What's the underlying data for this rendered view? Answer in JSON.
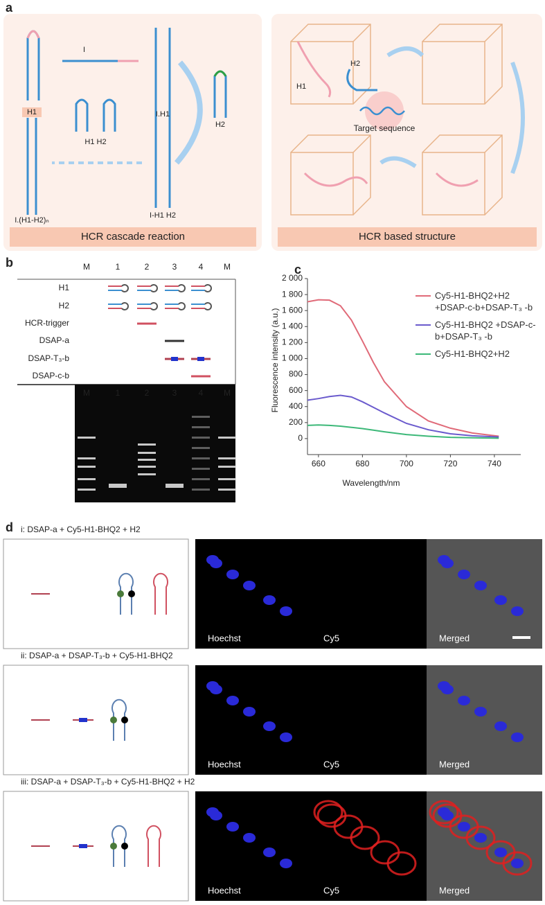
{
  "panel_a": {
    "label": "a",
    "left": {
      "labels": [
        "I",
        "H1",
        "I.H1",
        "H2",
        "H1 H2",
        "I-H1  H2",
        "I.(H1-H2)ₙ"
      ],
      "caption": "HCR cascade reaction"
    },
    "right": {
      "labels": [
        "H1",
        "H2",
        "Target sequence"
      ],
      "caption": "HCR based structure"
    }
  },
  "panel_b": {
    "label": "b",
    "lanes": [
      "M",
      "1",
      "2",
      "3",
      "4",
      "M"
    ],
    "rows": [
      "H1",
      "H2",
      "HCR-trigger",
      "DSAP-a",
      "DSAP-T₃-b",
      "DSAP-c-b"
    ],
    "gel_lanes": [
      "M",
      "1",
      "2",
      "3",
      "4",
      "M"
    ]
  },
  "chart_data": {
    "type": "line",
    "panel_label": "c",
    "x_label": "Wavelength/nm",
    "y_label": "Fluorescence intensity (a.u.)",
    "x": [
      655,
      660,
      665,
      670,
      675,
      680,
      685,
      690,
      700,
      710,
      720,
      730,
      742
    ],
    "series": [
      {
        "name": "Cy5-H1-BHQ2+H2 +DSAP-c-b+DSAP-T₃ -b",
        "color": "#e06a78",
        "values": [
          1710,
          1735,
          1730,
          1660,
          1480,
          1220,
          950,
          710,
          400,
          220,
          130,
          70,
          30
        ]
      },
      {
        "name": "Cy5-H1-BHQ2 +DSAP-c-b+DSAP-T₃ -b",
        "color": "#6a5acd",
        "values": [
          480,
          500,
          525,
          540,
          520,
          460,
          390,
          320,
          190,
          110,
          60,
          35,
          20
        ]
      },
      {
        "name": "Cy5-H1-BHQ2+H2",
        "color": "#3cb878",
        "values": [
          165,
          170,
          165,
          155,
          140,
          125,
          105,
          85,
          50,
          30,
          15,
          10,
          5
        ]
      }
    ],
    "xlim": [
      655,
      752
    ],
    "xticks": [
      660,
      680,
      700,
      720,
      740
    ],
    "ylim": [
      -200,
      2000
    ],
    "yticks": [
      {
        "value": 2000,
        "label": "2 000"
      },
      {
        "value": 1800,
        "label": "1 800"
      },
      {
        "value": 1600,
        "label": "1 600"
      },
      {
        "value": 1400,
        "label": "1 400"
      },
      {
        "value": 1200,
        "label": "1 200"
      },
      {
        "value": 1000,
        "label": "1 000"
      },
      800,
      600,
      400,
      200,
      0
    ],
    "grid": false
  },
  "panel_d": {
    "label": "d",
    "rows": [
      {
        "title": "i: DSAP-a + Cy5-H1-BHQ2 + H2",
        "channels": [
          "Hoechst",
          "Cy5",
          "Merged"
        ]
      },
      {
        "title": "ii: DSAP-a + DSAP-T₃-b + Cy5-H1-BHQ2",
        "channels": [
          "Hoechst",
          "Cy5",
          "Merged"
        ]
      },
      {
        "title": "iii: DSAP-a + DSAP-T₃-b + Cy5-H1-BHQ2 + H2",
        "channels": [
          "Hoechst",
          "Cy5",
          "Merged"
        ]
      }
    ]
  }
}
